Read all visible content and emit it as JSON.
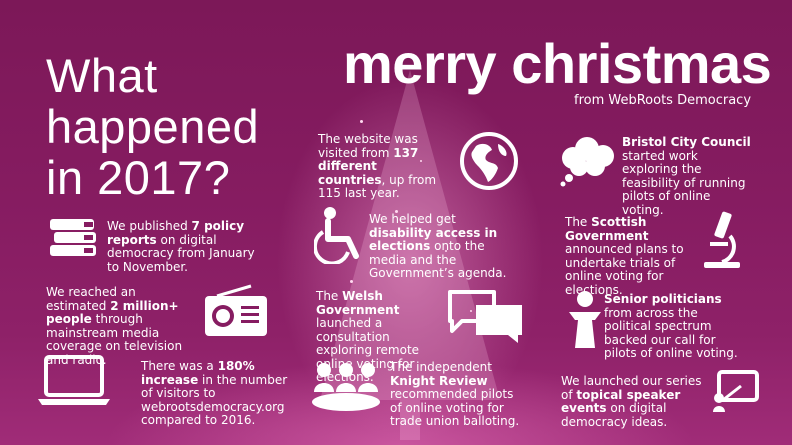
{
  "headline": {
    "line1": "What",
    "line2": "happened",
    "line3": "in 2017?"
  },
  "greeting": {
    "title": "merry christmas",
    "subtitle": "from WebRoots Democracy"
  },
  "facts": {
    "reports": {
      "pre": "We published ",
      "bold": "7 policy reports",
      "post": " on digital democracy from January to November."
    },
    "reach": {
      "pre": "We reached an estimated ",
      "bold": "2 million+ people",
      "post": " through mainstream media coverage on television and radio."
    },
    "visitors": {
      "pre": "There was a ",
      "bold": "180% increase",
      "post": " in the number of visitors to webrootsdemocracy.org compared to 2016."
    },
    "countries": {
      "pre": "The website was visited from ",
      "bold": "137 different countries",
      "post": ", up from 115 last year."
    },
    "disability": {
      "pre": "We helped get ",
      "bold": "disability access in elections",
      "post": " onto the media and the Government’s agenda."
    },
    "welsh": {
      "pre": "The ",
      "bold": "Welsh Government",
      "post": " launched a consultation exploring remote online voting for elections."
    },
    "knight": {
      "pre": "The independent ",
      "bold": "Knight Review",
      "post": " recommended pilots of online voting for trade union balloting."
    },
    "bristol": {
      "pre": "",
      "bold": "Bristol City Council",
      "post": " started work exploring the feasibility of running pilots of online voting."
    },
    "scottish": {
      "pre": "The ",
      "bold": "Scottish Government",
      "post": " announced plans to undertake trials of online voting for elections."
    },
    "politicians": {
      "pre": "",
      "bold": "Senior politicians",
      "post": " from across the political spectrum backed our call for pilots of online voting."
    },
    "speakers": {
      "pre": "We launched our series of ",
      "bold": "topical speaker events",
      "post": " on digital democracy ideas."
    }
  },
  "icons": [
    "books-icon",
    "radio-icon",
    "laptop-icon",
    "globe-icon",
    "wheelchair-icon",
    "speech-bubbles-icon",
    "group-icon",
    "thought-cloud-icon",
    "microscope-icon",
    "podium-icon",
    "presentation-icon"
  ],
  "colors": {
    "background": "#861c61",
    "text": "#ffffff"
  }
}
